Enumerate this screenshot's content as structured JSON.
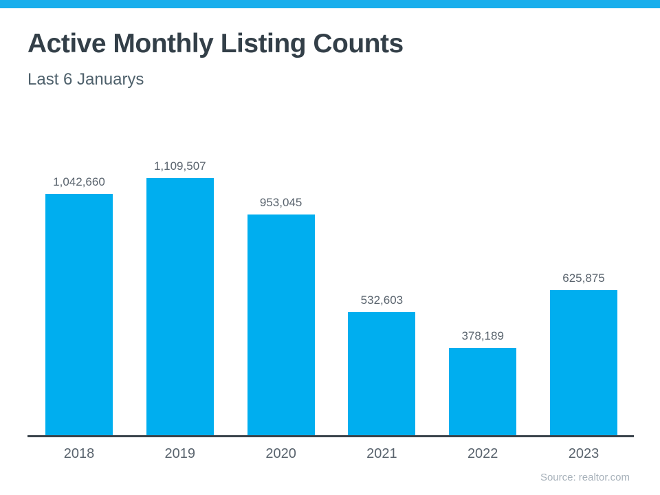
{
  "page": {
    "top_bar_color": "#19AEEC",
    "background_color": "#FFFFFF"
  },
  "header": {
    "title": "Active Monthly Listing Counts",
    "subtitle": "Last 6 Januarys"
  },
  "chart_data": {
    "type": "bar",
    "title": "Active Monthly Listing Counts",
    "subtitle": "Last 6 Januarys",
    "categories": [
      "2018",
      "2019",
      "2020",
      "2021",
      "2022",
      "2023"
    ],
    "values": [
      1042660,
      1109507,
      953045,
      532603,
      378189,
      625875
    ],
    "value_labels": [
      "1,042,660",
      "1,109,507",
      "953,045",
      "532,603",
      "378,189",
      "625,875"
    ],
    "bar_color": "#00AEEF",
    "xlabel": "",
    "ylabel": "",
    "ylim": [
      0,
      1109507
    ],
    "grid": false,
    "legend": null,
    "y_axis_visible": false,
    "source": "Source: realtor.com"
  },
  "footer": {
    "source": "Source: realtor.com"
  }
}
